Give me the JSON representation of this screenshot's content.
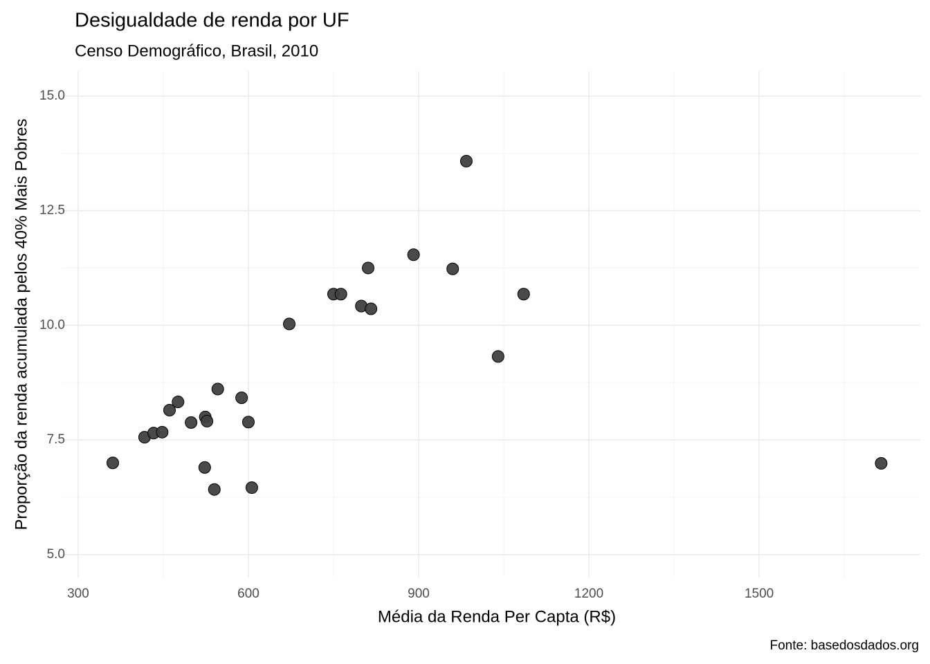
{
  "chart_data": {
    "type": "scatter",
    "title": "Desigualdade de renda por UF",
    "subtitle": "Censo Demográfico, Brasil, 2010",
    "x_label": "Média da Renda Per Capta (R$)",
    "y_label": "Proporção da renda acumulada pelos 40% Mais Pobres",
    "caption": "Fonte: basedosdados.org",
    "x": [
      361,
      417,
      433,
      448,
      461,
      476,
      499,
      523,
      524,
      527,
      540,
      546,
      588,
      600,
      606,
      672,
      750,
      763,
      799,
      811,
      816,
      891,
      960,
      984,
      1040,
      1085,
      1715
    ],
    "values": [
      7.0,
      7.56,
      7.65,
      7.67,
      8.15,
      8.33,
      7.88,
      6.9,
      8.0,
      7.91,
      6.42,
      8.61,
      8.42,
      7.89,
      6.46,
      10.03,
      10.68,
      10.68,
      10.42,
      11.25,
      10.36,
      11.54,
      11.23,
      13.58,
      9.32,
      10.68,
      6.99
    ],
    "color": "#404040",
    "xlim": [
      272,
      1784
    ],
    "ylim": [
      4.5,
      15.54
    ],
    "xticks": [
      300,
      600,
      900,
      1200,
      1500
    ],
    "yticks": [
      {
        "value": 5,
        "label": "5.0"
      },
      7.5,
      {
        "value": 10,
        "label": "10.0"
      },
      12.5,
      {
        "value": 15,
        "label": "15.0"
      }
    ],
    "grid": true
  }
}
